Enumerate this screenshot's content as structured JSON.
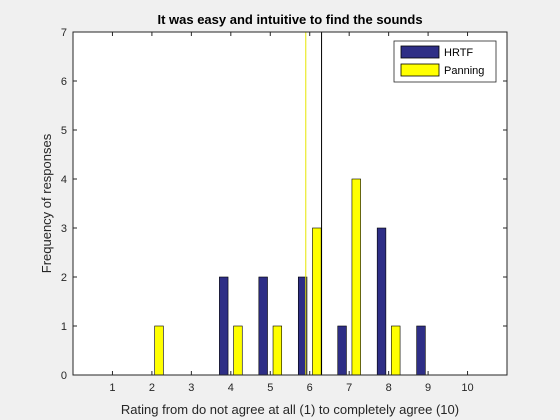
{
  "chart_data": {
    "type": "bar",
    "title": "It was easy and intuitive to find the sounds",
    "xlabel": "Rating from do not agree at all (1) to completely agree (10)",
    "ylabel": "Frequency of responses",
    "x_ticks": [
      1,
      2,
      3,
      4,
      5,
      6,
      7,
      8,
      9,
      10
    ],
    "y_ticks": [
      0,
      1,
      2,
      3,
      4,
      5,
      6,
      7
    ],
    "xlim": [
      0,
      11
    ],
    "ylim": [
      0,
      7
    ],
    "categories": [
      1,
      2,
      3,
      4,
      5,
      6,
      7,
      8,
      9,
      10
    ],
    "series": [
      {
        "name": "HRTF",
        "color": "#2e2e86",
        "values": [
          0,
          0,
          0,
          2,
          2,
          2,
          1,
          3,
          1,
          0
        ]
      },
      {
        "name": "Panning",
        "color": "#ffff00",
        "values": [
          0,
          1,
          0,
          1,
          1,
          3,
          4,
          1,
          0,
          0
        ]
      }
    ],
    "reference_lines": [
      {
        "series": "Panning",
        "x": 5.9,
        "color": "#e6e600"
      },
      {
        "series": "HRTF",
        "x": 6.3,
        "color": "#000000"
      }
    ],
    "legend": "top-right",
    "grid": false
  }
}
